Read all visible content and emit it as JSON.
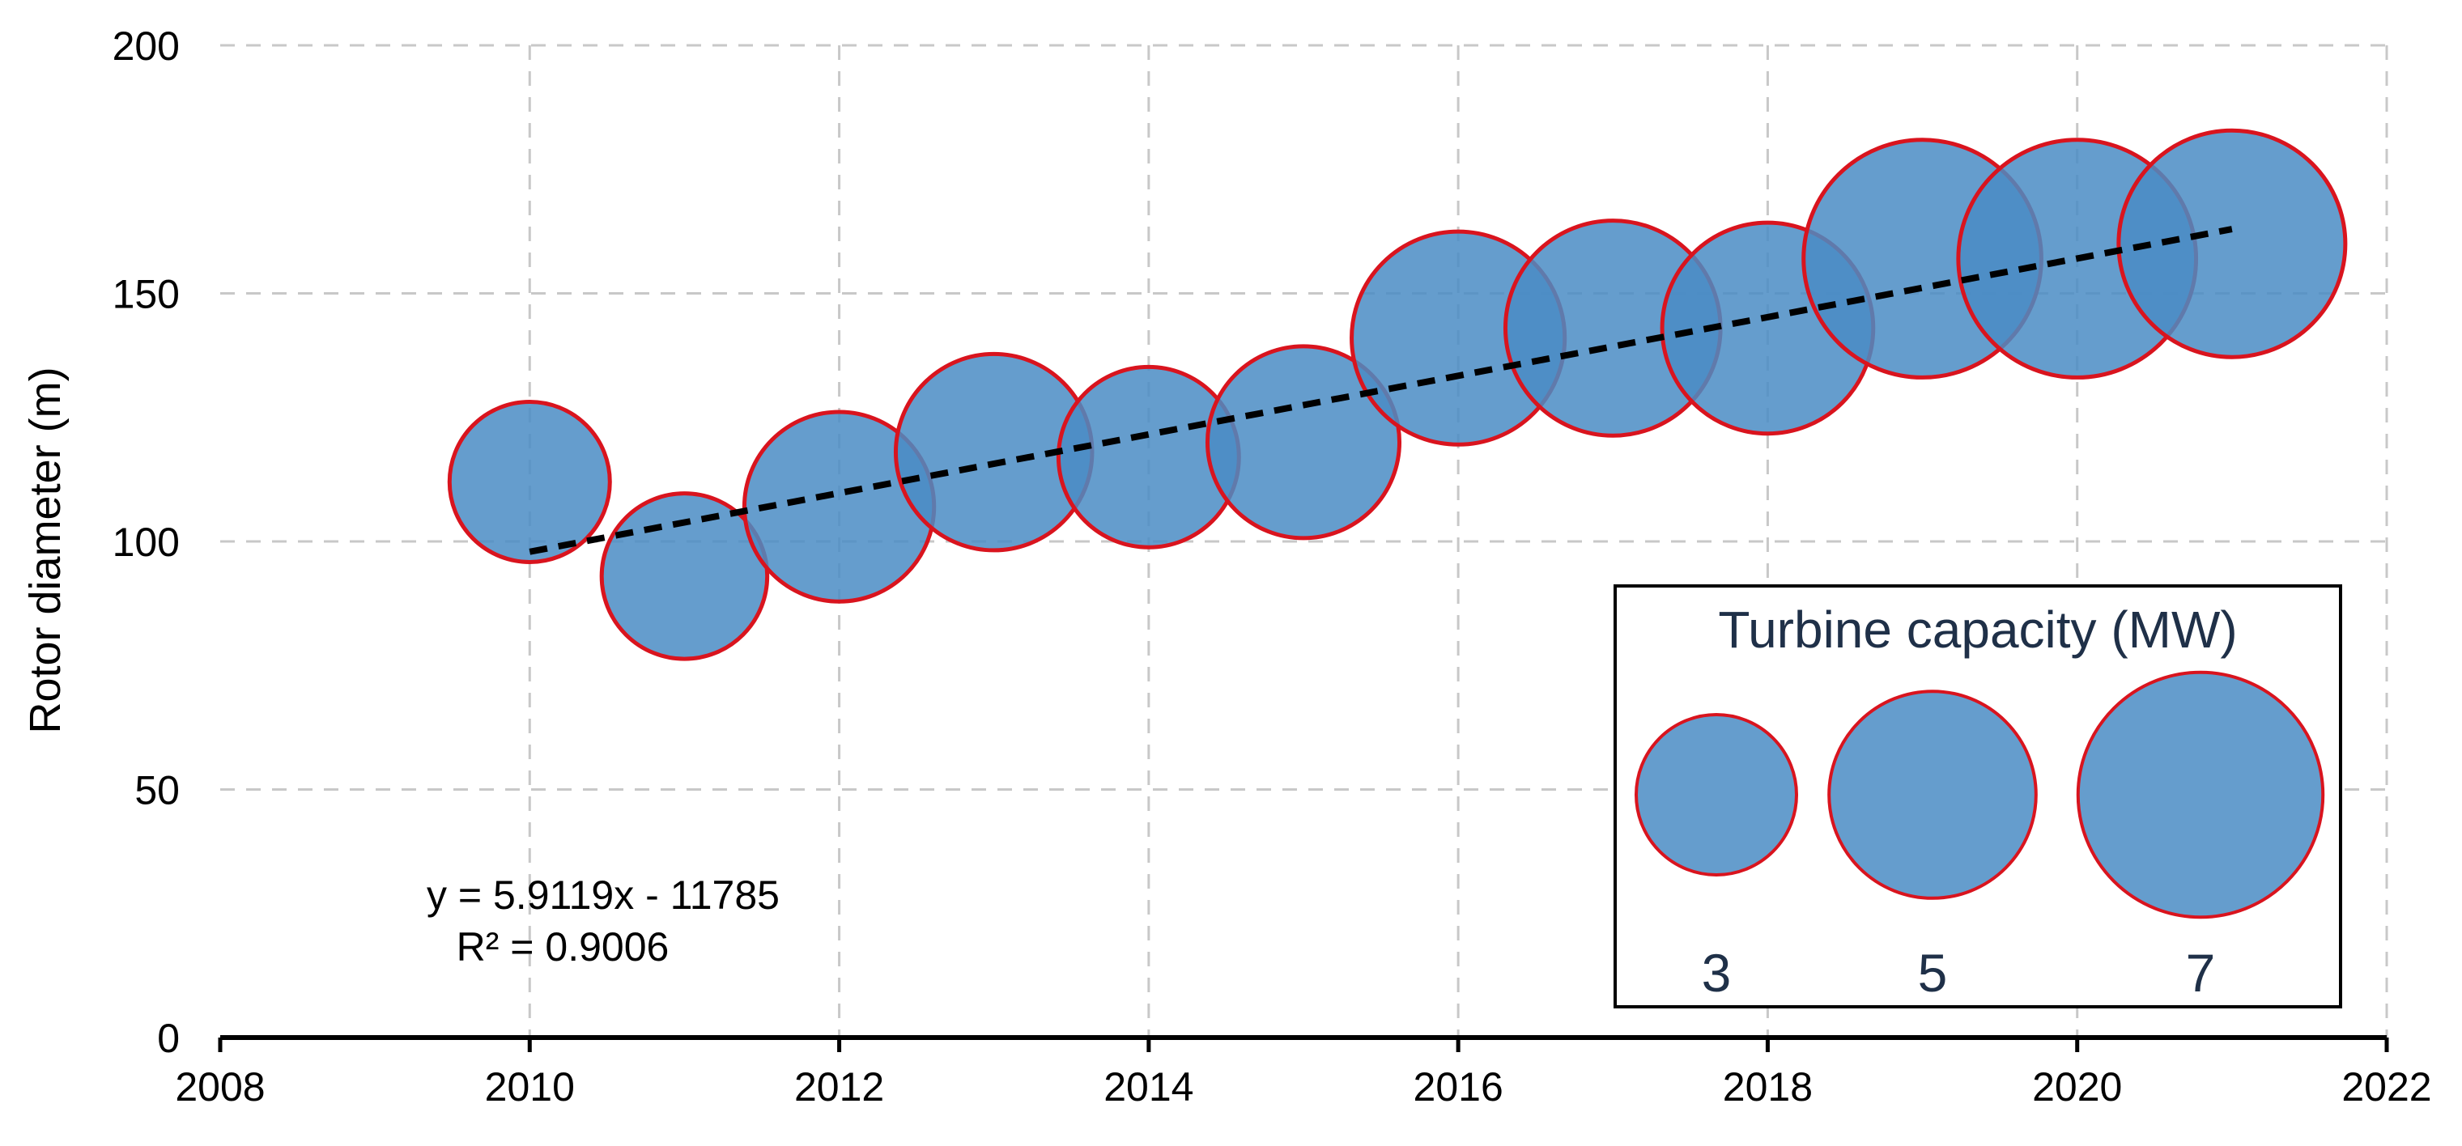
{
  "chart_data": {
    "type": "scatter",
    "subtype": "bubble",
    "title": "",
    "xlabel": "",
    "ylabel": "Rotor diameter (m)",
    "xlim": [
      2008,
      2022
    ],
    "ylim": [
      0,
      200
    ],
    "x_ticks": [
      2008,
      2010,
      2012,
      2014,
      2016,
      2018,
      2020,
      2022
    ],
    "y_ticks": [
      0,
      50,
      100,
      150,
      200
    ],
    "grid": true,
    "colors": {
      "bubble_fill": "#4a8cc4",
      "bubble_stroke": "#d9141e",
      "trendline": "#000000",
      "legend_text": "#1f3048"
    },
    "series": [
      {
        "points": [
          {
            "x": 2010,
            "y": 112,
            "size": 3.0
          },
          {
            "x": 2011,
            "y": 93,
            "size": 3.2
          },
          {
            "x": 2012,
            "y": 107,
            "size": 4.2
          },
          {
            "x": 2013,
            "y": 118,
            "size": 4.5
          },
          {
            "x": 2014,
            "y": 117,
            "size": 3.8
          },
          {
            "x": 2015,
            "y": 120,
            "size": 4.3
          },
          {
            "x": 2016,
            "y": 141,
            "size": 5.3
          },
          {
            "x": 2017,
            "y": 143,
            "size": 5.4
          },
          {
            "x": 2018,
            "y": 143,
            "size": 5.2
          },
          {
            "x": 2019,
            "y": 157,
            "size": 6.6
          },
          {
            "x": 2020,
            "y": 157,
            "size": 6.6
          },
          {
            "x": 2021,
            "y": 160,
            "size": 6.0
          }
        ]
      }
    ],
    "trendline": {
      "style": "dashed",
      "x_range": [
        2010,
        2021
      ],
      "slope": 5.9119,
      "intercept": -11785,
      "equation_label": "y = 5.9119x - 11785",
      "r2_label": "R² = 0.9006"
    },
    "size_legend": {
      "title": "Turbine capacity (MW)",
      "placement": "bottom-right",
      "items": [
        {
          "label": "3",
          "size": 3
        },
        {
          "label": "5",
          "size": 5
        },
        {
          "label": "7",
          "size": 7
        }
      ]
    }
  }
}
